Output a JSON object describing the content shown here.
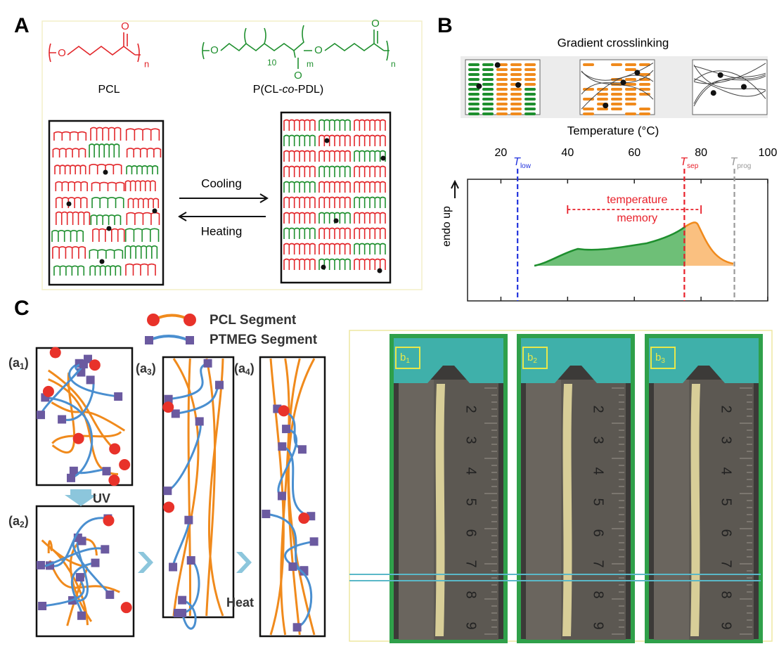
{
  "panel_a": {
    "label": "A",
    "pcl_formula": {
      "atom": "O",
      "carbonyl": "O",
      "repeat": "n"
    },
    "copolymer_formula": {
      "atoms": [
        "O",
        "O"
      ],
      "carbonyls": [
        "O",
        "O"
      ],
      "subscripts": [
        "10",
        "m",
        "n"
      ]
    },
    "pcl_name": "PCL",
    "copolymer_name": [
      "P(CL-",
      "co",
      "-PDL)"
    ],
    "cooling": "Cooling",
    "heating": "Heating"
  },
  "panel_b": {
    "label": "B",
    "title": "Gradient crosslinking",
    "xlabel": "Temperature (°C)",
    "xlim": [
      10,
      100
    ],
    "xticks": [
      20,
      40,
      60,
      80,
      100
    ],
    "ylabel": "endo up",
    "markers": [
      {
        "symbol": "T",
        "sub": "low",
        "value": 25,
        "color": "#2233dd"
      },
      {
        "symbol": "T",
        "sub": "sep",
        "value": 75,
        "color": "#e8202a"
      },
      {
        "symbol": "T",
        "sub": "prog",
        "value": 90,
        "color": "#999999"
      }
    ],
    "memory_range": [
      40,
      80
    ],
    "memory_label": [
      "temperature",
      "memory"
    ]
  },
  "panel_c": {
    "label": "C",
    "legend": [
      "PCL Segment",
      "PTMEG Segment"
    ],
    "states": [
      [
        "(a",
        "1",
        ")"
      ],
      [
        "(a",
        "2",
        ")"
      ],
      [
        "(a",
        "3",
        ")"
      ],
      [
        "(a",
        "4",
        ")"
      ]
    ],
    "uv": "UV",
    "heat": "Heat",
    "photos": [
      [
        "b",
        "1"
      ],
      [
        "b",
        "2"
      ],
      [
        "b",
        "3"
      ]
    ],
    "ruler_numbers": [
      "2",
      "3",
      "4",
      "5",
      "6",
      "7",
      "8",
      "9"
    ]
  }
}
